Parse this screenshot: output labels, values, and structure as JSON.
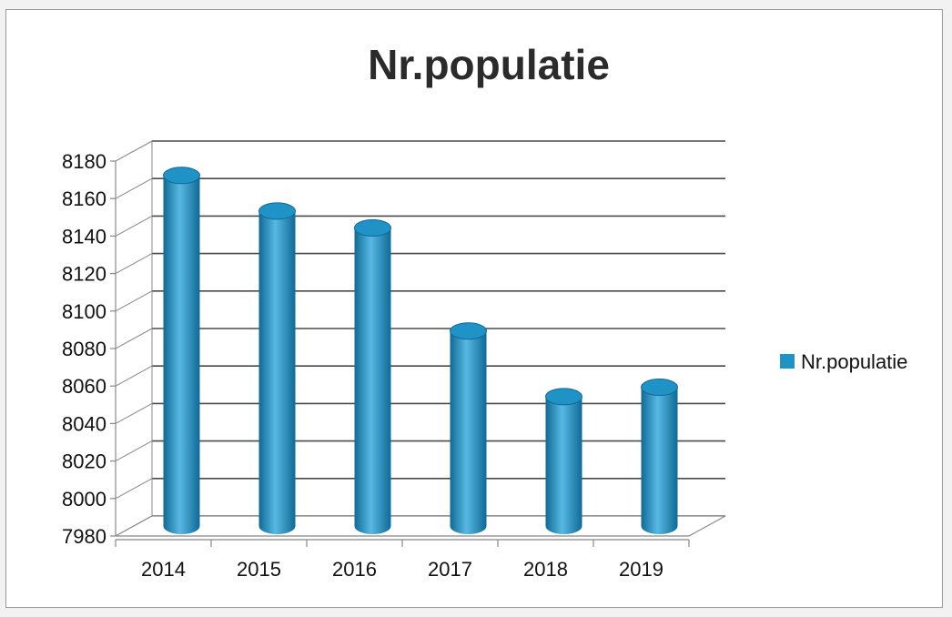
{
  "chart_data": {
    "type": "bar",
    "title": "Nr.populatie",
    "categories": [
      "2014",
      "2015",
      "2016",
      "2017",
      "2018",
      "2019"
    ],
    "series": [
      {
        "name": "Nr.populatie",
        "values": [
          8167,
          8148,
          8139,
          8084,
          8049,
          8054
        ]
      }
    ],
    "ylim": [
      7980,
      8180
    ],
    "yticks": [
      7980,
      8000,
      8020,
      8040,
      8060,
      8080,
      8100,
      8120,
      8140,
      8160,
      8180
    ],
    "grid": true,
    "legend_position": "right",
    "bar_shape": "3d-cylinder",
    "colors": {
      "bar": "#1f92c6",
      "bar_dark": "#0f6a95",
      "bar_light": "#57b9e3",
      "grid": "#4a4a4a",
      "axis": "#888888"
    }
  }
}
